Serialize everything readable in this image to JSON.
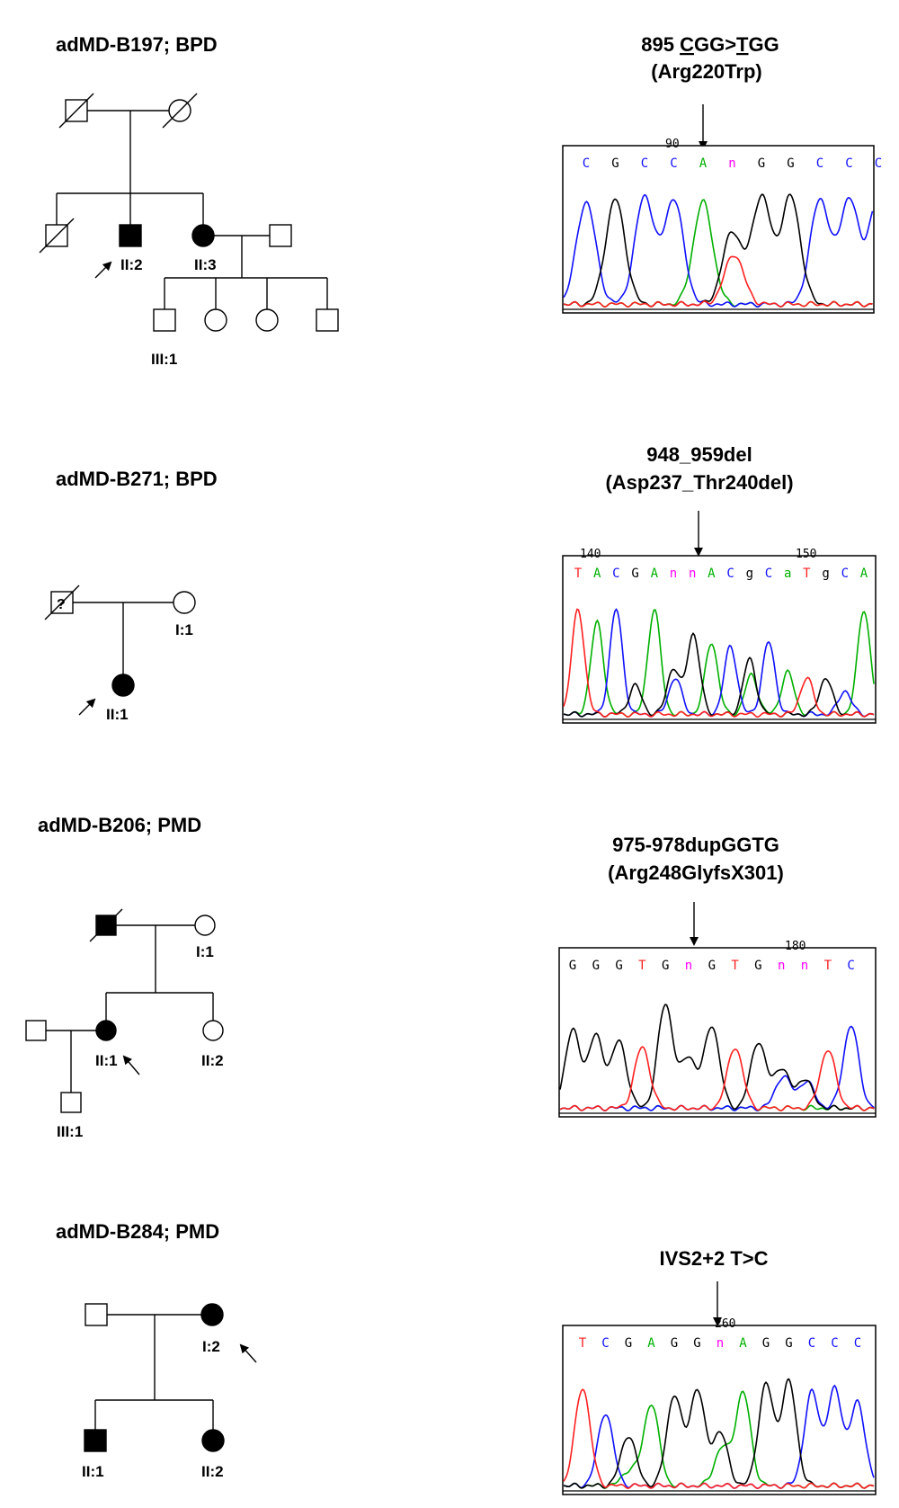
{
  "families": [
    {
      "title": "adMD-B197; BPD",
      "labels": {
        "proband": "II:2",
        "sister": "II:3",
        "child": "III:1"
      },
      "mutation_line1": "895 CGG>TGG",
      "mutation_line1_pre": "895 ",
      "mutation_line1_c": "C",
      "mutation_line1_mid": "GG>",
      "mutation_line1_t": "T",
      "mutation_line1_post": "GG",
      "mutation_line2": "(Arg220Trp)",
      "position_label": "90",
      "bases": [
        "C",
        "G",
        "C",
        "C",
        "A",
        "n",
        "G",
        "G",
        "C",
        "C",
        "C"
      ]
    },
    {
      "title": "adMD-B271; BPD",
      "labels": {
        "unknown_mark": "?",
        "mother": "I:1",
        "proband": "II:1"
      },
      "mutation_line1": "948_959del",
      "mutation_line2": "(Asp237_Thr240del)",
      "position_label_1": "140",
      "position_label_2": "150",
      "bases": [
        "T",
        "A",
        "C",
        "G",
        "A",
        "n",
        "n",
        "A",
        "C",
        "g",
        "C",
        "a",
        "T",
        "g",
        "C",
        "A"
      ]
    },
    {
      "title": "adMD-B206; PMD",
      "labels": {
        "mother": "I:1",
        "proband": "II:1",
        "sister": "II:2",
        "child": "III:1"
      },
      "mutation_line1": "975-978dupGGTG",
      "mutation_line2": "(Arg248GlyfsX301)",
      "position_label": "180",
      "bases": [
        "G",
        "G",
        "G",
        "T",
        "G",
        "n",
        "G",
        "T",
        "G",
        "n",
        "n",
        "T",
        "C"
      ]
    },
    {
      "title": "adMD-B284; PMD",
      "labels": {
        "proband": "I:2",
        "son": "II:1",
        "daughter": "II:2"
      },
      "mutation_line1": "IVS2+2 T>C",
      "position_label": "260",
      "bases": [
        "T",
        "C",
        "G",
        "A",
        "G",
        "G",
        "n",
        "A",
        "G",
        "G",
        "C",
        "C",
        "C"
      ]
    }
  ],
  "colors": {
    "base_A": "#00b000",
    "base_C": "#1010ff",
    "base_G": "#000000",
    "base_T": "#ff2020",
    "base_N": "#ff00ff"
  }
}
